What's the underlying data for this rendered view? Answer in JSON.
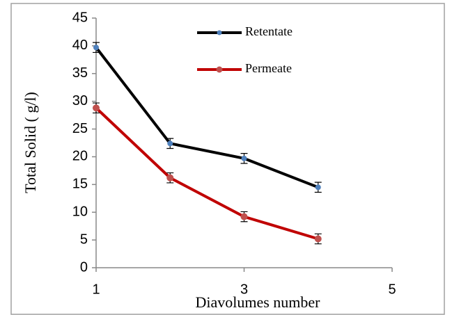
{
  "chart_data": {
    "type": "line",
    "x_label": "Diavolumes number",
    "y_label": "Total Solid ( g/l)",
    "x": [
      1,
      2,
      3,
      4
    ],
    "series": [
      {
        "name": "Retentate",
        "color": "#000000",
        "marker_color": "#4f81bd",
        "values": [
          39.7,
          22.4,
          19.7,
          14.5
        ],
        "errors": [
          0.9,
          0.9,
          0.9,
          0.9
        ]
      },
      {
        "name": "Permeate",
        "color": "#c00000",
        "marker_color": "#c0504d",
        "values": [
          28.8,
          16.2,
          9.2,
          5.2
        ],
        "errors": [
          0.9,
          0.9,
          0.9,
          0.9
        ]
      }
    ],
    "xlim": [
      1,
      5
    ],
    "xticks": [
      1,
      3,
      5
    ],
    "ylim": [
      0,
      45
    ],
    "yticks": [
      0,
      5,
      10,
      15,
      20,
      25,
      30,
      35,
      40,
      45
    ],
    "grid": false
  }
}
